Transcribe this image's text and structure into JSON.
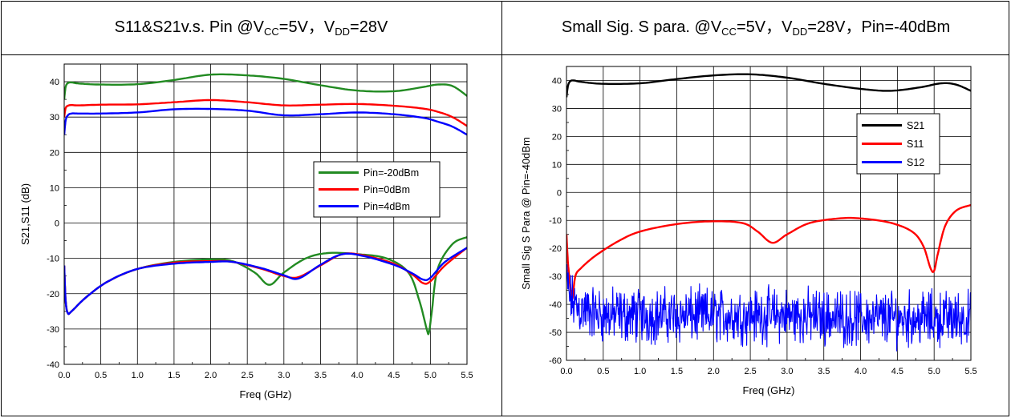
{
  "titles": {
    "left": {
      "a": "S11&S21v.s. Pin @V",
      "a_sub": "CC",
      "b": "=5V，V",
      "b_sub": "DD",
      "c": "=28V"
    },
    "right": {
      "a": "Small Sig. S para. @V",
      "a_sub": "CC",
      "b": "=5V，V",
      "b_sub": "DD",
      "c": "=28V，Pin=-40dBm"
    }
  },
  "chart_data": [
    {
      "type": "line",
      "xlabel": "Freq (GHz)",
      "ylabel": "S21,S11 (dB)",
      "xlim": [
        0,
        5.5
      ],
      "ylim": [
        -40,
        45
      ],
      "xticks": [
        "0.0",
        "0.5",
        "1.0",
        "1.5",
        "2.0",
        "2.5",
        "3.0",
        "3.5",
        "4.0",
        "4.5",
        "5.0",
        "5.5"
      ],
      "yticks": [
        "-40",
        "-30",
        "-20",
        "-10",
        "0",
        "10",
        "20",
        "30",
        "40"
      ],
      "grid": true,
      "legend": "center-right",
      "series": [
        {
          "name": "Pin=-20dBm",
          "color": "#228b22",
          "group": "S21",
          "x": [
            0.0,
            0.02,
            0.05,
            0.1,
            0.2,
            0.5,
            1.0,
            1.5,
            2.0,
            2.5,
            3.0,
            3.5,
            4.0,
            4.5,
            4.9,
            5.1,
            5.3,
            5.5
          ],
          "y": [
            35,
            38.5,
            39.6,
            39.8,
            39.5,
            39.2,
            39.3,
            40.5,
            42,
            41.8,
            40.8,
            39,
            37.5,
            37.3,
            38.5,
            39.2,
            38.8,
            36
          ]
        },
        {
          "name": "Pin=0dBm",
          "color": "#ff0000",
          "group": "S21",
          "x": [
            0.0,
            0.02,
            0.05,
            0.1,
            0.2,
            0.5,
            1.0,
            1.5,
            2.0,
            2.5,
            3.0,
            3.5,
            4.0,
            4.5,
            4.9,
            5.1,
            5.3,
            5.5
          ],
          "y": [
            30,
            32.5,
            33.2,
            33.4,
            33.3,
            33.5,
            33.6,
            34.2,
            34.8,
            34.2,
            33.3,
            33.5,
            33.7,
            33.2,
            32.4,
            31.5,
            30,
            27.5
          ]
        },
        {
          "name": "Pin=4dBm",
          "color": "#0000ff",
          "group": "S21",
          "x": [
            0.0,
            0.02,
            0.05,
            0.1,
            0.2,
            0.5,
            1.0,
            1.5,
            2.0,
            2.5,
            3.0,
            3.5,
            4.0,
            4.5,
            4.9,
            5.1,
            5.3,
            5.5
          ],
          "y": [
            25,
            29,
            30.5,
            31,
            31,
            31,
            31.3,
            32.2,
            32.3,
            31.8,
            30.5,
            30.8,
            31.3,
            30.8,
            29.8,
            28.7,
            27.3,
            25
          ]
        },
        {
          "name": "Pin=-20dBm",
          "color": "#228b22",
          "group": "S11",
          "x": [
            0.0,
            0.02,
            0.05,
            0.1,
            0.3,
            0.6,
            1.0,
            1.5,
            2.0,
            2.3,
            2.6,
            2.8,
            3.0,
            3.3,
            3.6,
            4.0,
            4.4,
            4.7,
            4.85,
            4.95,
            4.98,
            5.02,
            5.1,
            5.3,
            5.5
          ],
          "y": [
            -12,
            -22,
            -25.5,
            -25,
            -21,
            -16.5,
            -13,
            -11,
            -10.3,
            -10.8,
            -14,
            -17.5,
            -14,
            -10,
            -8.5,
            -8.8,
            -10,
            -14,
            -22,
            -30,
            -31,
            -25,
            -13,
            -6,
            -4
          ]
        },
        {
          "name": "Pin=0dBm",
          "color": "#ff0000",
          "group": "S11",
          "x": [
            0.0,
            0.02,
            0.05,
            0.1,
            0.3,
            0.6,
            1.0,
            1.5,
            2.0,
            2.3,
            2.7,
            3.0,
            3.2,
            3.5,
            3.8,
            4.1,
            4.5,
            4.75,
            4.9,
            5.0,
            5.2,
            5.5
          ],
          "y": [
            -12,
            -22,
            -25.5,
            -25,
            -21,
            -16.5,
            -13,
            -11.2,
            -10.8,
            -11,
            -13,
            -15,
            -15.3,
            -12,
            -8.8,
            -9.2,
            -11.5,
            -14.5,
            -17,
            -16.5,
            -12,
            -7
          ]
        },
        {
          "name": "Pin=4dBm",
          "color": "#0000ff",
          "group": "S11",
          "x": [
            0.0,
            0.02,
            0.05,
            0.1,
            0.3,
            0.6,
            1.0,
            1.5,
            2.0,
            2.3,
            2.7,
            3.0,
            3.2,
            3.5,
            3.8,
            4.1,
            4.5,
            4.75,
            4.9,
            5.0,
            5.2,
            5.5
          ],
          "y": [
            -12,
            -22,
            -25.5,
            -25,
            -21,
            -16.5,
            -13,
            -11.5,
            -11,
            -11,
            -12.8,
            -14.8,
            -15.7,
            -11.8,
            -8.8,
            -9.4,
            -11.8,
            -14.2,
            -16,
            -15.5,
            -11,
            -7
          ]
        }
      ]
    },
    {
      "type": "line",
      "xlabel": "Freq (GHz)",
      "ylabel": "Small Sig S Para @ Pin=-40dBm",
      "xlim": [
        0,
        5.5
      ],
      "ylim": [
        -60,
        45
      ],
      "xticks": [
        "0.0",
        "0.5",
        "1.0",
        "1.5",
        "2.0",
        "2.5",
        "3.0",
        "3.5",
        "4.0",
        "4.5",
        "5.0",
        "5.5"
      ],
      "yticks": [
        "-60",
        "-50",
        "-40",
        "-30",
        "-20",
        "-10",
        "0",
        "10",
        "20",
        "30",
        "40"
      ],
      "grid": true,
      "legend": "upper-right",
      "series": [
        {
          "name": "S21",
          "color": "#000000",
          "x": [
            0.0,
            0.02,
            0.05,
            0.1,
            0.2,
            0.5,
            1.0,
            1.5,
            2.0,
            2.5,
            3.0,
            3.5,
            4.0,
            4.4,
            4.8,
            5.1,
            5.3,
            5.5
          ],
          "y": [
            34,
            38,
            39.7,
            40,
            39.5,
            38.8,
            39,
            40.5,
            41.8,
            42.2,
            41,
            38.8,
            37,
            36.3,
            37.5,
            39,
            38.5,
            36.3
          ]
        },
        {
          "name": "S11",
          "color": "#ff0000",
          "x": [
            0.0,
            0.02,
            0.05,
            0.08,
            0.12,
            0.2,
            0.4,
            0.7,
            1.0,
            1.5,
            2.0,
            2.4,
            2.6,
            2.8,
            3.0,
            3.3,
            3.7,
            4.0,
            4.4,
            4.7,
            4.85,
            4.95,
            5.0,
            5.05,
            5.15,
            5.3,
            5.5
          ],
          "y": [
            -15,
            -25,
            -33,
            -38,
            -30,
            -27,
            -22.5,
            -17.5,
            -14,
            -11.3,
            -10.3,
            -11,
            -14,
            -18,
            -15,
            -11,
            -9.3,
            -9.3,
            -10.8,
            -14,
            -19,
            -27,
            -28,
            -22,
            -12,
            -6.5,
            -4.5
          ]
        },
        {
          "name": "S12",
          "color": "#0000ff",
          "noise": true,
          "x": [
            0.0,
            0.05,
            0.1,
            0.2,
            0.5,
            1.0,
            2.0,
            3.0,
            4.0,
            5.0,
            5.5
          ],
          "y": [
            -32,
            -38,
            -40,
            -42,
            -44,
            -44,
            -44,
            -44,
            -45,
            -45,
            -45
          ],
          "amplitude": 6
        }
      ]
    }
  ]
}
